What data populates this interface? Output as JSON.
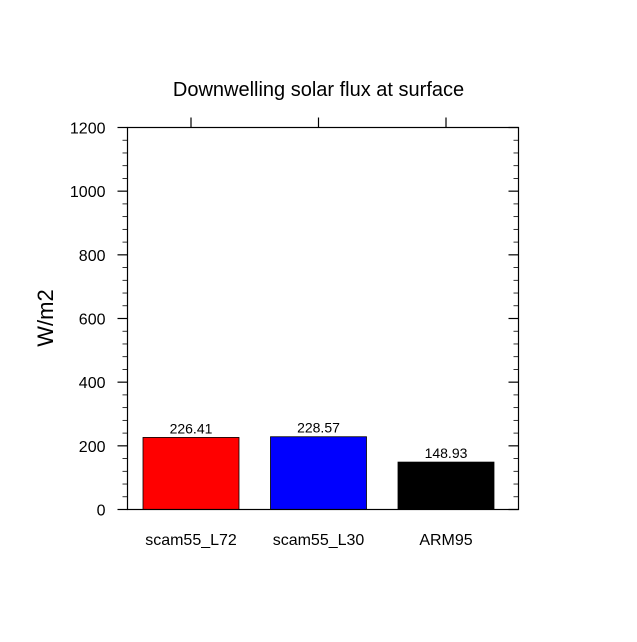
{
  "chart_data": {
    "type": "bar",
    "title": "Downwelling solar flux at surface",
    "xlabel": "",
    "ylabel": "W/m2",
    "ylim": [
      0,
      1200
    ],
    "yticks": [
      "0",
      "200",
      "400",
      "600",
      "800",
      "1000",
      "1200"
    ],
    "yminor_step": 40,
    "categories": [
      "scam55_L72",
      "scam55_L30",
      "ARM95"
    ],
    "values": [
      226.41,
      228.57,
      148.93
    ],
    "value_labels": [
      "226.41",
      "228.57",
      "148.93"
    ],
    "bar_colors": [
      "#ff0000",
      "#0000ff",
      "#000000"
    ],
    "grid": false,
    "legend": "none"
  }
}
